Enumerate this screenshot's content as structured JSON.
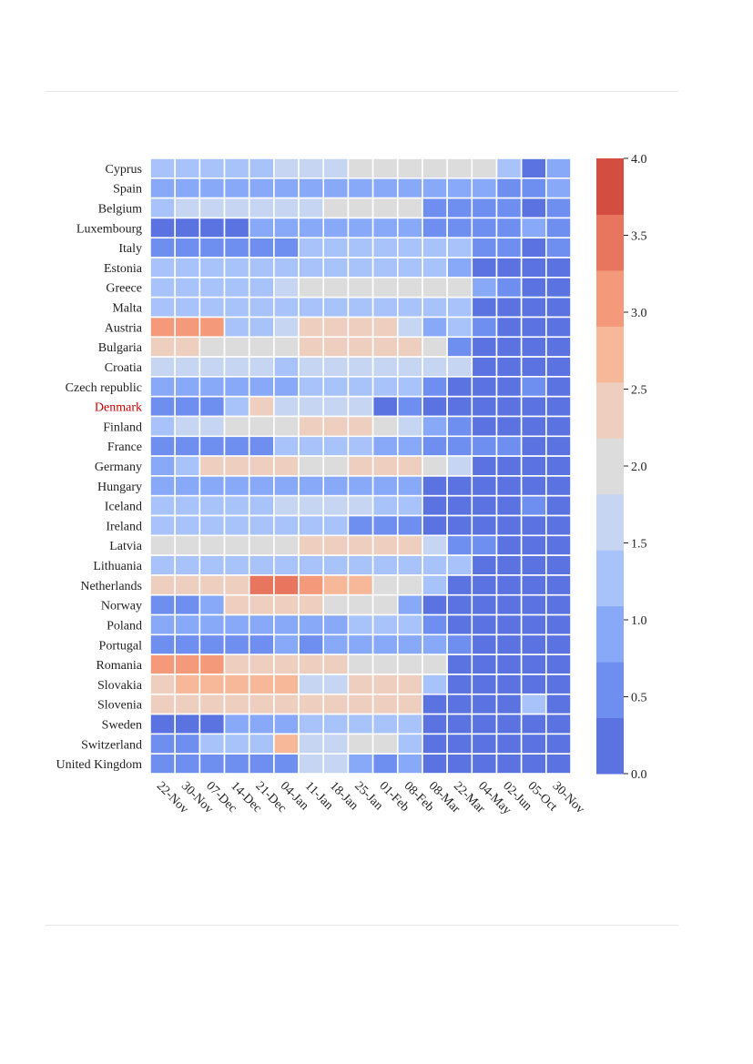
{
  "chart_data": {
    "type": "heatmap",
    "title": "",
    "xlabel": "",
    "ylabel": "",
    "highlight_row": "Denmark",
    "highlight_color": "#cc0000",
    "x": [
      "22-Nov",
      "30-Nov",
      "07-Dec",
      "14-Dec",
      "21-Dec",
      "04-Jan",
      "11-Jan",
      "18-Jan",
      "25-Jan",
      "01-Feb",
      "08-Feb",
      "08-Mar",
      "22-Mar",
      "04-May",
      "02-Jun",
      "05-Oct",
      "30-Nov"
    ],
    "y": [
      "Cyprus",
      "Spain",
      "Belgium",
      "Luxembourg",
      "Italy",
      "Estonia",
      "Greece",
      "Malta",
      "Austria",
      "Bulgaria",
      "Croatia",
      "Czech republic",
      "Denmark",
      "Finland",
      "France",
      "Germany",
      "Hungary",
      "Iceland",
      "Ireland",
      "Latvia",
      "Lithuania",
      "Netherlands",
      "Norway",
      "Poland",
      "Portugal",
      "Romania",
      "Slovakia",
      "Slovenia",
      "Sweden",
      "Switzerland",
      "United Kingdom"
    ],
    "colorbar": {
      "range": [
        0.0,
        4.0
      ],
      "ticks": [
        "0.0",
        "0.5",
        "1.0",
        "1.5",
        "2.0",
        "2.5",
        "3.0",
        "3.5",
        "4.0"
      ],
      "colors": [
        "#5b73e0",
        "#6f8ff0",
        "#88a8f8",
        "#a8c3fa",
        "#c6d5f2",
        "#dcdcdc",
        "#eecebe",
        "#f7b89a",
        "#f49a7b",
        "#e8755e",
        "#d44d41"
      ]
    },
    "values": [
      [
        1.2,
        1.2,
        1.2,
        1.2,
        1.2,
        1.5,
        1.5,
        1.5,
        2.0,
        2.0,
        2.0,
        2.0,
        2.0,
        2.0,
        1.2,
        0.0,
        0.9
      ],
      [
        0.9,
        0.9,
        0.9,
        0.9,
        0.9,
        0.9,
        0.9,
        0.9,
        0.9,
        0.9,
        0.9,
        0.9,
        0.9,
        0.9,
        0.7,
        0.5,
        0.9
      ],
      [
        1.2,
        1.5,
        1.5,
        1.5,
        1.5,
        1.5,
        1.5,
        2.0,
        2.0,
        2.0,
        2.0,
        0.6,
        0.6,
        0.6,
        0.6,
        0.2,
        0.6
      ],
      [
        0.1,
        0.1,
        0.1,
        0.1,
        0.9,
        0.9,
        0.9,
        0.9,
        0.9,
        0.9,
        0.9,
        0.6,
        0.6,
        0.6,
        0.6,
        0.9,
        0.6
      ],
      [
        0.6,
        0.6,
        0.6,
        0.6,
        0.6,
        0.6,
        1.2,
        1.2,
        1.2,
        1.2,
        1.2,
        1.2,
        1.2,
        0.6,
        0.6,
        0.2,
        0.6
      ],
      [
        1.2,
        1.2,
        1.2,
        1.2,
        1.2,
        1.2,
        1.2,
        1.2,
        1.2,
        1.2,
        1.2,
        1.2,
        0.9,
        0.2,
        0.2,
        0.2,
        0.2
      ],
      [
        1.2,
        1.2,
        1.2,
        1.2,
        1.2,
        1.5,
        2.0,
        2.0,
        2.0,
        2.0,
        2.0,
        2.0,
        2.0,
        0.9,
        0.6,
        0.2,
        0.2
      ],
      [
        1.2,
        1.2,
        1.2,
        1.2,
        1.2,
        1.2,
        1.2,
        1.2,
        1.2,
        1.2,
        1.2,
        1.2,
        1.2,
        0.2,
        0.2,
        0.2,
        0.2
      ],
      [
        3.0,
        3.0,
        3.0,
        1.2,
        1.2,
        1.5,
        2.4,
        2.4,
        2.4,
        2.4,
        1.5,
        0.9,
        1.2,
        0.6,
        0.2,
        0.2,
        0.2
      ],
      [
        2.4,
        2.4,
        2.0,
        2.0,
        2.0,
        2.0,
        2.4,
        2.4,
        2.4,
        2.4,
        2.4,
        2.0,
        0.6,
        0.2,
        0.2,
        0.2,
        0.2
      ],
      [
        1.5,
        1.5,
        1.5,
        1.5,
        1.5,
        1.2,
        1.5,
        1.5,
        1.5,
        1.5,
        1.5,
        1.5,
        1.5,
        0.2,
        0.2,
        0.2,
        0.2
      ],
      [
        0.9,
        0.9,
        0.9,
        0.9,
        0.9,
        0.9,
        1.2,
        1.2,
        1.2,
        1.2,
        1.2,
        0.6,
        0.2,
        0.2,
        0.2,
        0.6,
        0.2
      ],
      [
        0.6,
        0.6,
        0.6,
        1.2,
        2.4,
        1.5,
        1.5,
        1.5,
        1.5,
        0.2,
        0.6,
        0.2,
        0.2,
        0.2,
        0.2,
        0.2,
        0.2
      ],
      [
        1.2,
        1.5,
        1.5,
        2.0,
        2.0,
        2.0,
        2.4,
        2.4,
        2.4,
        2.0,
        1.5,
        0.9,
        0.6,
        0.2,
        0.2,
        0.2,
        0.2
      ],
      [
        0.6,
        0.6,
        0.6,
        0.6,
        0.6,
        1.2,
        1.2,
        1.2,
        1.2,
        0.9,
        0.9,
        0.6,
        0.6,
        0.6,
        0.6,
        0.2,
        0.2
      ],
      [
        0.9,
        1.2,
        2.4,
        2.4,
        2.4,
        2.4,
        2.0,
        2.0,
        2.4,
        2.4,
        2.4,
        2.0,
        1.5,
        0.2,
        0.2,
        0.2,
        0.2
      ],
      [
        0.9,
        0.9,
        0.9,
        0.9,
        0.9,
        0.9,
        0.9,
        0.9,
        0.9,
        0.9,
        0.9,
        0.2,
        0.2,
        0.2,
        0.2,
        0.2,
        0.2
      ],
      [
        1.2,
        1.2,
        1.2,
        1.2,
        1.2,
        1.5,
        1.5,
        1.5,
        1.5,
        1.2,
        1.2,
        0.2,
        0.2,
        0.2,
        0.2,
        0.6,
        0.2
      ],
      [
        1.2,
        1.2,
        1.2,
        1.2,
        1.2,
        1.2,
        1.2,
        1.2,
        0.6,
        0.6,
        0.6,
        0.2,
        0.2,
        0.2,
        0.2,
        0.2,
        0.2
      ],
      [
        2.0,
        2.0,
        2.0,
        2.0,
        2.0,
        2.0,
        2.4,
        2.4,
        2.4,
        2.4,
        2.4,
        1.5,
        0.6,
        0.6,
        0.2,
        0.2,
        0.2
      ],
      [
        1.2,
        1.2,
        1.2,
        1.2,
        1.2,
        1.2,
        1.2,
        1.2,
        1.2,
        1.2,
        1.2,
        1.2,
        1.2,
        0.2,
        0.2,
        0.2,
        0.2
      ],
      [
        2.4,
        2.4,
        2.4,
        2.4,
        3.5,
        3.5,
        3.0,
        2.8,
        2.8,
        2.0,
        2.0,
        1.2,
        0.2,
        0.2,
        0.2,
        0.2,
        0.2
      ],
      [
        0.6,
        0.6,
        0.9,
        2.4,
        2.4,
        2.4,
        2.4,
        2.0,
        2.0,
        2.0,
        0.9,
        0.2,
        0.2,
        0.2,
        0.2,
        0.2,
        0.2
      ],
      [
        0.9,
        0.9,
        0.9,
        0.9,
        0.9,
        0.9,
        0.9,
        0.9,
        1.2,
        1.2,
        1.2,
        0.6,
        0.2,
        0.2,
        0.2,
        0.2,
        0.2
      ],
      [
        0.6,
        0.6,
        0.6,
        0.6,
        0.6,
        0.9,
        0.6,
        0.9,
        0.9,
        0.9,
        0.9,
        0.9,
        0.6,
        0.2,
        0.2,
        0.2,
        0.2
      ],
      [
        3.0,
        3.0,
        3.0,
        2.4,
        2.4,
        2.4,
        2.4,
        2.4,
        2.0,
        2.0,
        2.0,
        2.0,
        0.2,
        0.2,
        0.2,
        0.2,
        0.2
      ],
      [
        2.4,
        2.8,
        2.8,
        2.8,
        2.8,
        2.8,
        1.5,
        1.5,
        2.4,
        2.4,
        2.4,
        1.2,
        0.2,
        0.2,
        0.2,
        0.2,
        0.2
      ],
      [
        2.4,
        2.4,
        2.4,
        2.4,
        2.4,
        2.4,
        2.4,
        2.4,
        2.4,
        2.4,
        2.4,
        0.2,
        0.2,
        0.2,
        0.2,
        1.2,
        0.2
      ],
      [
        0.1,
        0.1,
        0.1,
        0.9,
        0.9,
        0.9,
        1.2,
        1.2,
        1.2,
        1.2,
        1.2,
        0.2,
        0.2,
        0.2,
        0.2,
        0.2,
        0.2
      ],
      [
        0.6,
        0.6,
        1.2,
        1.2,
        1.2,
        2.8,
        1.5,
        1.5,
        2.0,
        2.0,
        1.2,
        0.2,
        0.2,
        0.2,
        0.2,
        0.2,
        0.2
      ],
      [
        0.6,
        0.6,
        0.6,
        0.6,
        0.6,
        0.6,
        1.5,
        1.5,
        0.9,
        0.6,
        0.9,
        0.2,
        0.2,
        0.2,
        0.2,
        0.2,
        0.2
      ]
    ]
  }
}
